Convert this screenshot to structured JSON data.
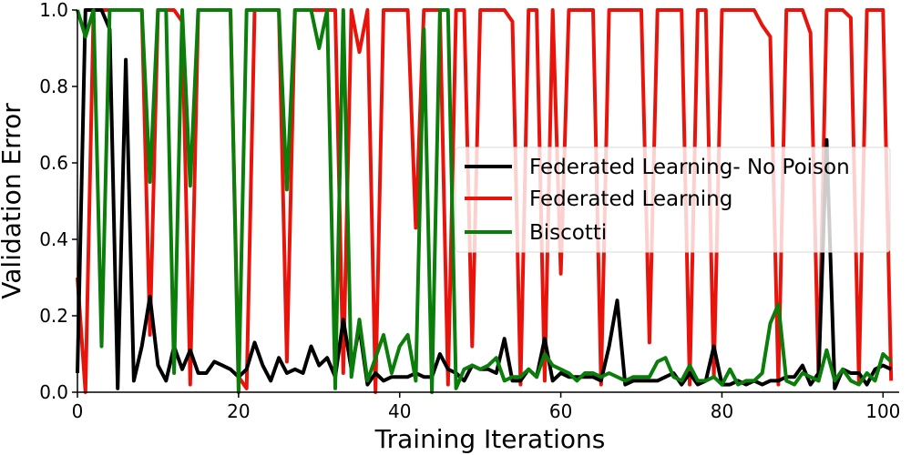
{
  "chart_data": {
    "type": "line",
    "title": "",
    "xlabel": "Training Iterations",
    "ylabel": "Validation Error",
    "xlim": [
      0,
      102
    ],
    "ylim": [
      0,
      1.0
    ],
    "xticks": [
      0,
      20,
      40,
      60,
      80,
      100
    ],
    "xtick_labels": [
      "0",
      "20",
      "40",
      "60",
      "80",
      "100"
    ],
    "yticks": [
      0.0,
      0.2,
      0.4,
      0.6,
      0.8,
      1.0
    ],
    "ytick_labels": [
      "0.0",
      "0.2",
      "0.4",
      "0.6",
      "0.8",
      "1.0"
    ],
    "legend_position": "center-right",
    "grid": false,
    "series": [
      {
        "name": "Federated Learning- No Poison",
        "color": "#000000",
        "x": [
          0,
          1,
          2,
          3,
          4,
          5,
          6,
          7,
          8,
          9,
          10,
          11,
          12,
          13,
          14,
          15,
          16,
          17,
          18,
          19,
          20,
          21,
          22,
          23,
          24,
          25,
          26,
          27,
          28,
          29,
          30,
          31,
          32,
          33,
          34,
          35,
          36,
          37,
          38,
          39,
          40,
          41,
          42,
          43,
          44,
          45,
          46,
          47,
          48,
          49,
          50,
          51,
          52,
          53,
          54,
          55,
          56,
          57,
          58,
          59,
          60,
          61,
          62,
          63,
          64,
          65,
          66,
          67,
          68,
          69,
          70,
          71,
          72,
          73,
          74,
          75,
          76,
          77,
          78,
          79,
          80,
          81,
          82,
          83,
          84,
          85,
          86,
          87,
          88,
          89,
          90,
          91,
          92,
          93,
          94,
          95,
          96,
          97,
          98,
          99,
          100,
          101
        ],
        "y": [
          0.05,
          1.0,
          1.0,
          1.0,
          0.95,
          0.01,
          0.87,
          0.03,
          0.12,
          0.25,
          0.07,
          0.03,
          0.12,
          0.06,
          0.11,
          0.05,
          0.05,
          0.08,
          0.07,
          0.06,
          0.04,
          0.06,
          0.13,
          0.07,
          0.03,
          0.09,
          0.05,
          0.06,
          0.05,
          0.12,
          0.07,
          0.09,
          0.04,
          0.19,
          0.06,
          0.17,
          0.02,
          0.05,
          0.03,
          0.04,
          0.04,
          0.04,
          0.05,
          0.04,
          0.04,
          0.1,
          0.06,
          0.05,
          0.03,
          0.07,
          0.06,
          0.06,
          0.05,
          0.14,
          0.03,
          0.03,
          0.06,
          0.04,
          0.14,
          0.03,
          0.05,
          0.04,
          0.04,
          0.04,
          0.04,
          0.03,
          0.12,
          0.24,
          0.02,
          0.03,
          0.03,
          0.03,
          0.03,
          0.04,
          0.05,
          0.02,
          0.05,
          0.02,
          0.03,
          0.12,
          0.02,
          0.02,
          0.03,
          0.02,
          0.03,
          0.02,
          0.03,
          0.03,
          0.04,
          0.04,
          0.07,
          0.02,
          0.05,
          0.66,
          0.01,
          0.06,
          0.05,
          0.05,
          0.02,
          0.06,
          0.07,
          0.06
        ]
      },
      {
        "name": "Federated Learning",
        "color": "#e8140c",
        "x": [
          0,
          1,
          2,
          3,
          4,
          5,
          6,
          7,
          8,
          9,
          10,
          11,
          12,
          13,
          14,
          15,
          16,
          17,
          18,
          19,
          20,
          21,
          22,
          23,
          24,
          25,
          26,
          27,
          28,
          29,
          30,
          31,
          32,
          33,
          34,
          35,
          36,
          37,
          38,
          39,
          40,
          41,
          42,
          43,
          44,
          45,
          46,
          47,
          48,
          49,
          50,
          51,
          52,
          53,
          54,
          55,
          56,
          57,
          58,
          59,
          60,
          61,
          62,
          63,
          64,
          65,
          66,
          67,
          68,
          69,
          70,
          71,
          72,
          73,
          74,
          75,
          76,
          77,
          78,
          79,
          80,
          81,
          82,
          83,
          84,
          85,
          86,
          87,
          88,
          89,
          90,
          91,
          92,
          93,
          94,
          95,
          96,
          97,
          98,
          99,
          100,
          101
        ],
        "y": [
          0.3,
          0.0,
          1.0,
          1.0,
          1.0,
          1.0,
          1.0,
          1.0,
          1.0,
          0.15,
          1.0,
          1.0,
          1.0,
          0.97,
          0.02,
          1.0,
          1.0,
          1.0,
          1.0,
          1.0,
          0.04,
          0.01,
          1.0,
          1.0,
          1.0,
          1.0,
          0.08,
          1.0,
          1.0,
          1.0,
          1.0,
          1.0,
          1.0,
          0.05,
          1.0,
          0.89,
          1.0,
          0.0,
          1.0,
          1.0,
          1.0,
          1.0,
          0.43,
          1.0,
          1.0,
          1.0,
          0.02,
          1.0,
          1.0,
          0.12,
          1.0,
          1.0,
          1.0,
          1.0,
          0.97,
          0.02,
          1.0,
          1.0,
          0.03,
          1.0,
          0.31,
          1.0,
          1.0,
          1.0,
          1.0,
          0.02,
          1.0,
          1.0,
          1.0,
          1.0,
          1.0,
          0.13,
          1.0,
          1.0,
          1.0,
          1.0,
          0.02,
          1.0,
          1.0,
          0.04,
          1.0,
          1.0,
          1.0,
          1.0,
          1.0,
          0.96,
          0.93,
          0.02,
          1.0,
          1.0,
          1.0,
          0.94,
          0.03,
          1.0,
          1.0,
          1.0,
          0.98,
          0.03,
          1.0,
          1.0,
          1.0,
          0.03
        ]
      },
      {
        "name": "Biscotti",
        "color": "#0a7d0a",
        "x": [
          0,
          1,
          2,
          3,
          4,
          5,
          6,
          7,
          8,
          9,
          10,
          11,
          12,
          13,
          14,
          15,
          16,
          17,
          18,
          19,
          20,
          21,
          22,
          23,
          24,
          25,
          26,
          27,
          28,
          29,
          30,
          31,
          32,
          33,
          34,
          35,
          36,
          37,
          38,
          39,
          40,
          41,
          42,
          43,
          44,
          45,
          46,
          47,
          48,
          49,
          50,
          51,
          52,
          53,
          54,
          55,
          56,
          57,
          58,
          59,
          60,
          61,
          62,
          63,
          64,
          65,
          66,
          67,
          68,
          69,
          70,
          71,
          72,
          73,
          74,
          75,
          76,
          77,
          78,
          79,
          80,
          81,
          82,
          83,
          84,
          85,
          86,
          87,
          88,
          89,
          90,
          91,
          92,
          93,
          94,
          95,
          96,
          97,
          98,
          99,
          100,
          101
        ],
        "y": [
          1.0,
          0.93,
          1.0,
          0.12,
          1.0,
          1.0,
          1.0,
          1.0,
          1.0,
          0.55,
          1.0,
          1.0,
          0.05,
          1.0,
          0.54,
          1.0,
          1.0,
          1.0,
          1.0,
          1.0,
          0.0,
          1.0,
          1.0,
          1.0,
          1.0,
          1.0,
          0.53,
          1.0,
          1.0,
          1.0,
          0.9,
          1.0,
          0.01,
          1.0,
          0.04,
          0.19,
          0.03,
          0.09,
          0.15,
          0.05,
          0.12,
          0.15,
          0.03,
          0.95,
          0.0,
          1.0,
          1.0,
          0.01,
          0.06,
          0.07,
          0.06,
          0.07,
          0.09,
          0.03,
          0.04,
          0.04,
          0.06,
          0.04,
          0.1,
          0.07,
          0.06,
          0.05,
          0.03,
          0.05,
          0.05,
          0.04,
          0.05,
          0.04,
          0.03,
          0.04,
          0.04,
          0.04,
          0.08,
          0.09,
          0.04,
          0.03,
          0.07,
          0.03,
          0.03,
          0.04,
          0.02,
          0.06,
          0.02,
          0.03,
          0.03,
          0.05,
          0.18,
          0.23,
          0.03,
          0.02,
          0.05,
          0.04,
          0.03,
          0.11,
          0.03,
          0.06,
          0.03,
          0.02,
          0.05,
          0.03,
          0.1,
          0.08
        ]
      }
    ]
  }
}
